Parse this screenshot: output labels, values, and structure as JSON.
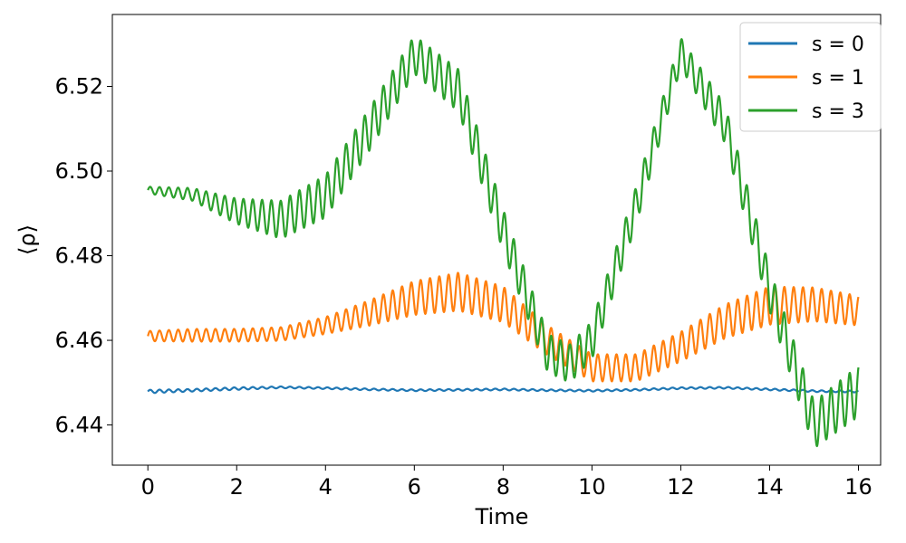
{
  "chart_data": {
    "type": "line",
    "title": "",
    "xlabel": "Time",
    "ylabel": "⟨ρ⟩",
    "xlim": [
      -0.8,
      16.5
    ],
    "ylim": [
      6.4305,
      6.537
    ],
    "xticks": [
      0,
      2,
      4,
      6,
      8,
      10,
      12,
      14,
      16
    ],
    "xtick_labels": [
      "0",
      "2",
      "4",
      "6",
      "8",
      "10",
      "12",
      "14",
      "16"
    ],
    "yticks": [
      6.44,
      6.46,
      6.48,
      6.5,
      6.52
    ],
    "ytick_labels": [
      "6.44",
      "6.46",
      "6.48",
      "6.50",
      "6.52"
    ],
    "grid": false,
    "legend_position": "top-right",
    "oscillation_period": 0.21,
    "series": [
      {
        "name": "s = 0",
        "color": "#1f77b4",
        "envelope": {
          "t": [
            0,
            1,
            2,
            3,
            4,
            5,
            6,
            7,
            8,
            9,
            10,
            11,
            12,
            13,
            14,
            15,
            16
          ],
          "center": [
            6.4479,
            6.4482,
            6.4486,
            6.4489,
            6.4487,
            6.4484,
            6.4482,
            6.4483,
            6.4484,
            6.4482,
            6.4481,
            6.4483,
            6.4487,
            6.4488,
            6.4484,
            6.448,
            6.4479
          ],
          "amplitude": [
            0.0004,
            0.0003,
            0.0003,
            0.0002,
            0.0002,
            0.0002,
            0.0002,
            0.0002,
            0.0002,
            0.0002,
            0.0002,
            0.0002,
            0.0002,
            0.0002,
            0.0002,
            0.0002,
            0.0002
          ]
        }
      },
      {
        "name": "s = 1",
        "color": "#ff7f0e",
        "envelope": {
          "t": [
            0,
            1,
            2,
            3,
            4,
            5,
            6,
            7,
            8,
            9,
            10,
            11,
            12,
            13,
            14,
            15,
            16
          ],
          "center": [
            6.461,
            6.4612,
            6.4612,
            6.4615,
            6.4635,
            6.4665,
            6.47,
            6.4715,
            6.4685,
            6.46,
            6.4535,
            6.4535,
            6.4585,
            6.4645,
            6.4682,
            6.4685,
            6.467
          ],
          "amplitude": [
            0.0012,
            0.0015,
            0.0015,
            0.0016,
            0.002,
            0.003,
            0.004,
            0.0045,
            0.0042,
            0.0035,
            0.0032,
            0.0032,
            0.0035,
            0.004,
            0.0045,
            0.004,
            0.0035
          ]
        }
      },
      {
        "name": "s = 3",
        "color": "#2ca02c",
        "envelope": {
          "t": [
            0,
            1,
            2,
            3,
            4,
            5,
            6,
            7,
            8,
            9,
            9.5,
            10,
            11,
            12,
            13,
            14,
            15,
            16
          ],
          "center": [
            6.4955,
            6.4945,
            6.4905,
            6.4885,
            6.494,
            6.51,
            6.5275,
            6.519,
            6.486,
            6.457,
            6.4545,
            6.46,
            6.492,
            6.528,
            6.511,
            6.472,
            6.44,
            6.448
          ],
          "amplitude": [
            0.0008,
            0.0015,
            0.003,
            0.0045,
            0.005,
            0.005,
            0.0045,
            0.005,
            0.005,
            0.0045,
            0.0045,
            0.0045,
            0.0045,
            0.0035,
            0.0045,
            0.005,
            0.0055,
            0.006
          ]
        }
      }
    ]
  }
}
